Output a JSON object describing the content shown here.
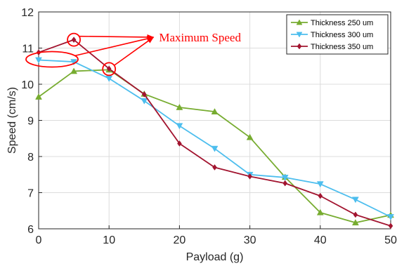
{
  "chart_data": {
    "type": "line",
    "xlabel": "Payload (g)",
    "ylabel": "Speed (cm/s)",
    "xlim": [
      0,
      50
    ],
    "ylim": [
      6,
      12
    ],
    "x_ticks": [
      "0",
      "10",
      "20",
      "30",
      "40",
      "50"
    ],
    "y_ticks": [
      "6",
      "7",
      "8",
      "9",
      "10",
      "11",
      "12"
    ],
    "x": [
      0,
      5,
      10,
      15,
      20,
      25,
      30,
      35,
      40,
      45,
      50
    ],
    "grid": true,
    "legend_position": "top-right",
    "series": [
      {
        "name": "Thickness 250 um",
        "color": "#77AC30",
        "marker": "triangle-up",
        "values": [
          9.65,
          10.36,
          10.4,
          9.73,
          9.36,
          9.24,
          8.53,
          7.43,
          6.45,
          6.17,
          6.38
        ]
      },
      {
        "name": "Thickness 300 um",
        "color": "#4DBEEE",
        "marker": "triangle-down",
        "values": [
          10.67,
          10.62,
          10.16,
          9.54,
          8.85,
          8.22,
          7.5,
          7.42,
          7.24,
          6.81,
          6.33
        ]
      },
      {
        "name": "Thickness 350 um",
        "color": "#A2142F",
        "marker": "diamond",
        "values": [
          10.88,
          11.23,
          10.43,
          9.72,
          8.36,
          7.7,
          7.45,
          7.26,
          6.91,
          6.39,
          6.08
        ]
      }
    ],
    "annotation": {
      "text": "Maximum Speed",
      "color": "#FF0000",
      "text_anchor": {
        "x": 16.5,
        "y": 11.3
      },
      "targets": [
        {
          "x": 1.3,
          "y": 10.65,
          "shape": "ellipse"
        },
        {
          "x": 5,
          "y": 11.23,
          "shape": "circle"
        },
        {
          "x": 10,
          "y": 10.42,
          "shape": "circle"
        }
      ]
    }
  }
}
